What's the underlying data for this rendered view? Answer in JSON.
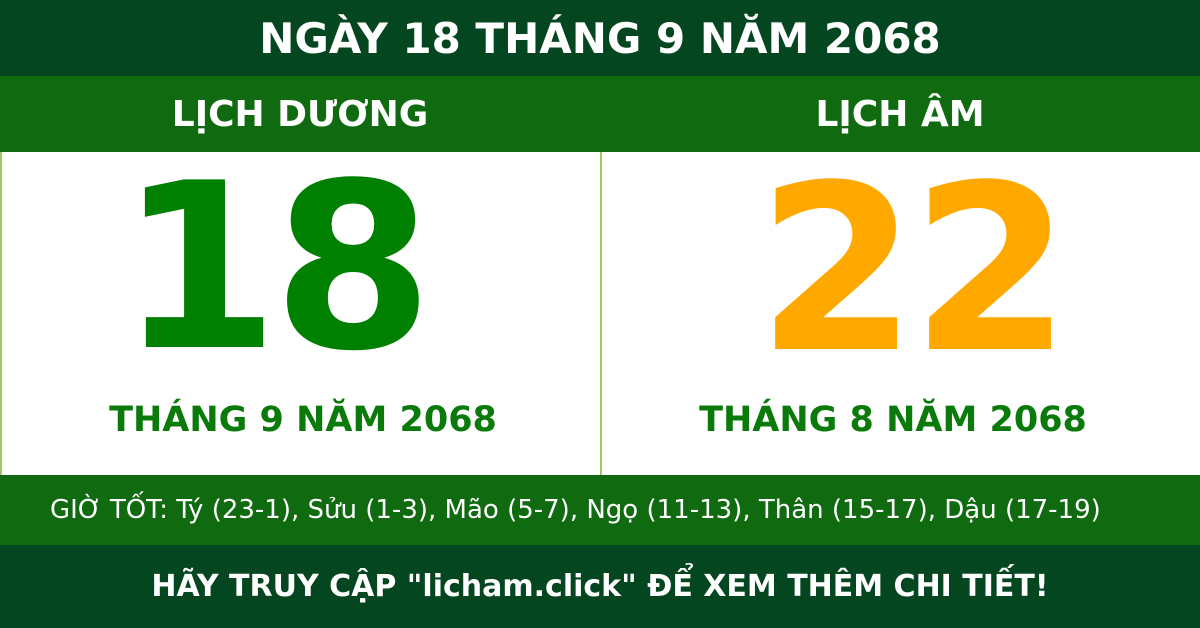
{
  "title": "NGÀY 18 THÁNG 9 NĂM 2068",
  "solar": {
    "heading": "LỊCH DƯƠNG",
    "day": "18",
    "month_year": "THÁNG 9 NĂM 2068"
  },
  "lunar": {
    "heading": "LỊCH ÂM",
    "day": "22",
    "month_year": "THÁNG 8 NĂM 2068"
  },
  "good_hours": "GIỜ TỐT: Tý (23-1), Sửu (1-3), Mão (5-7), Ngọ (11-13), Thân (15-17), Dậu (17-19)",
  "footer": "HÃY TRUY CẬP \"licham.click\" ĐỂ XEM THÊM CHI TIẾT!",
  "colors": {
    "dark_green": "#03461f",
    "green": "#0f6a10",
    "solar_day": "#008000",
    "lunar_day": "#ffa800"
  }
}
